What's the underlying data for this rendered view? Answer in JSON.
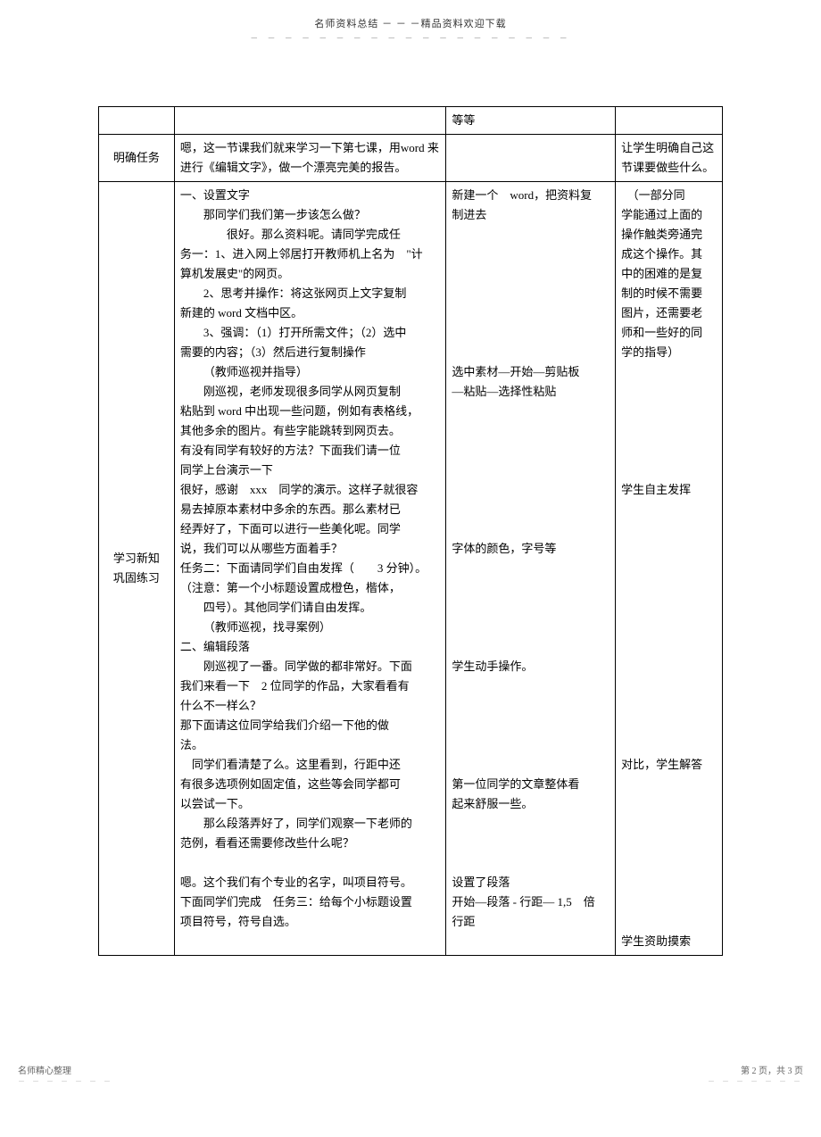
{
  "header": {
    "title": "名师资料总结 － － －精品资料欢迎下载",
    "dots": "－ － － － － － － － － － － － － － － － － － －"
  },
  "table": {
    "row1": {
      "c1": "",
      "c2": "",
      "c3": "等等",
      "c4": ""
    },
    "row2": {
      "c1": "明确任务",
      "c2": "嗯，这一节课我们就来学习一下第七课，用word 来进行《编辑文字》，做一个漂亮完美的报告。",
      "c3": "",
      "c4": "让学生明确自己这节课要做些什么。"
    },
    "row3": {
      "c1": "学习新知\n巩固练习",
      "c2_lines": [
        {
          "cls": "para",
          "t": "一、设置文字"
        },
        {
          "cls": "indent",
          "t": "那同学们我们第一步该怎么做？"
        },
        {
          "cls": "indent2",
          "t": "很好。那么资料呢。请同学完成任"
        },
        {
          "cls": "para",
          "t": "务一：1、进入网上邻居打开教师机上名为　\"计"
        },
        {
          "cls": "para",
          "t": "算机发展史\"的网页。"
        },
        {
          "cls": "indent",
          "t": "2、思考并操作：将这张网页上文字复制"
        },
        {
          "cls": "para",
          "t": "新建的 word 文档中区。"
        },
        {
          "cls": "indent",
          "t": "3、强调：（1）打开所需文件；（2）选中"
        },
        {
          "cls": "para",
          "t": "需要的内容；（3）然后进行复制操作"
        },
        {
          "cls": "indent",
          "t": "（教师巡视并指导）"
        },
        {
          "cls": "indent",
          "t": "刚巡视，老师发现很多同学从网页复制"
        },
        {
          "cls": "para",
          "t": "粘贴到 word 中出现一些问题，例如有表格线，"
        },
        {
          "cls": "para",
          "t": "其他多余的图片。有些字能跳转到网页去。"
        },
        {
          "cls": "para",
          "t": "有没有同学有较好的方法？下面我们请一位"
        },
        {
          "cls": "para",
          "t": "同学上台演示一下"
        },
        {
          "cls": "para",
          "t": "很好，感谢　xxx　同学的演示。这样子就很容"
        },
        {
          "cls": "para",
          "t": "易去掉原本素材中多余的东西。那么素材已"
        },
        {
          "cls": "para",
          "t": "经弄好了，下面可以进行一些美化呢。同学"
        },
        {
          "cls": "para",
          "t": "说，我们可以从哪些方面着手？"
        },
        {
          "cls": "para",
          "t": "任务二：下面请同学们自由发挥（　　3 分钟）。"
        },
        {
          "cls": "para",
          "t": "（注意：第一个小标题设置成橙色，楷体，"
        },
        {
          "cls": "indent",
          "t": "四号）。其他同学们请自由发挥。"
        },
        {
          "cls": "indent",
          "t": "（教师巡视，找寻案例）"
        },
        {
          "cls": "para",
          "t": "二、编辑段落"
        },
        {
          "cls": "indent",
          "t": "刚巡视了一番。同学做的都非常好。下面"
        },
        {
          "cls": "para",
          "t": "我们来看一下　2 位同学的作品，大家看看有"
        },
        {
          "cls": "para",
          "t": "什么不一样么？"
        },
        {
          "cls": "para",
          "t": "那下面请这位同学给我们介绍一下他的做"
        },
        {
          "cls": "para",
          "t": "法。"
        },
        {
          "cls": "para",
          "t": "　同学们看清楚了么。这里看到，行距中还"
        },
        {
          "cls": "para",
          "t": "有很多选项例如固定值，这些等会同学都可"
        },
        {
          "cls": "para",
          "t": "以尝试一下。"
        },
        {
          "cls": "indent",
          "t": "那么段落弄好了，同学们观察一下老师的"
        },
        {
          "cls": "para",
          "t": "范例，看看还需要修改些什么呢？"
        },
        {
          "cls": "spacer",
          "t": ""
        },
        {
          "cls": "para",
          "t": "嗯。这个我们有个专业的名字，叫项目符号。"
        },
        {
          "cls": "para",
          "t": "下面同学们完成　任务三：给每个小标题设置"
        },
        {
          "cls": "para",
          "t": "项目符号，符号自选。"
        }
      ],
      "c3_lines": [
        {
          "cls": "para",
          "t": "新建一个　word，把资料复"
        },
        {
          "cls": "para",
          "t": "制进去"
        },
        {
          "cls": "spacer",
          "t": ""
        },
        {
          "cls": "spacer",
          "t": ""
        },
        {
          "cls": "spacer",
          "t": ""
        },
        {
          "cls": "spacer",
          "t": ""
        },
        {
          "cls": "spacer",
          "t": ""
        },
        {
          "cls": "spacer",
          "t": ""
        },
        {
          "cls": "spacer",
          "t": ""
        },
        {
          "cls": "para",
          "t": "选中素材—开始—剪贴板"
        },
        {
          "cls": "para",
          "t": "—粘贴—选择性粘贴"
        },
        {
          "cls": "spacer",
          "t": ""
        },
        {
          "cls": "spacer",
          "t": ""
        },
        {
          "cls": "spacer",
          "t": ""
        },
        {
          "cls": "spacer",
          "t": ""
        },
        {
          "cls": "spacer",
          "t": ""
        },
        {
          "cls": "spacer",
          "t": ""
        },
        {
          "cls": "spacer",
          "t": ""
        },
        {
          "cls": "para",
          "t": "字体的颜色，字号等"
        },
        {
          "cls": "spacer",
          "t": ""
        },
        {
          "cls": "spacer",
          "t": ""
        },
        {
          "cls": "spacer",
          "t": ""
        },
        {
          "cls": "spacer",
          "t": ""
        },
        {
          "cls": "spacer",
          "t": ""
        },
        {
          "cls": "para",
          "t": "学生动手操作。"
        },
        {
          "cls": "spacer",
          "t": ""
        },
        {
          "cls": "spacer",
          "t": ""
        },
        {
          "cls": "spacer",
          "t": ""
        },
        {
          "cls": "spacer",
          "t": ""
        },
        {
          "cls": "spacer",
          "t": ""
        },
        {
          "cls": "para",
          "t": "第一位同学的文章整体看"
        },
        {
          "cls": "para",
          "t": "起来舒服一些。"
        },
        {
          "cls": "spacer",
          "t": ""
        },
        {
          "cls": "spacer",
          "t": ""
        },
        {
          "cls": "spacer",
          "t": ""
        },
        {
          "cls": "para",
          "t": "设置了段落"
        },
        {
          "cls": "para",
          "t": "开始—段落 - 行距— 1,5　倍"
        },
        {
          "cls": "para",
          "t": "行距"
        }
      ],
      "c4_lines": [
        {
          "cls": "para",
          "t": "　（一部分同"
        },
        {
          "cls": "para",
          "t": "学能通过上面的"
        },
        {
          "cls": "para",
          "t": "操作触类旁通完"
        },
        {
          "cls": "para",
          "t": "成这个操作。其"
        },
        {
          "cls": "para",
          "t": "中的困难的是复"
        },
        {
          "cls": "para",
          "t": "制的时候不需要"
        },
        {
          "cls": "para",
          "t": "图片，还需要老"
        },
        {
          "cls": "para",
          "t": "师和一些好的同"
        },
        {
          "cls": "para",
          "t": "学的指导）"
        },
        {
          "cls": "spacer",
          "t": ""
        },
        {
          "cls": "spacer",
          "t": ""
        },
        {
          "cls": "spacer",
          "t": ""
        },
        {
          "cls": "spacer",
          "t": ""
        },
        {
          "cls": "spacer",
          "t": ""
        },
        {
          "cls": "spacer",
          "t": ""
        },
        {
          "cls": "para",
          "t": "学生自主发挥"
        },
        {
          "cls": "spacer",
          "t": ""
        },
        {
          "cls": "spacer",
          "t": ""
        },
        {
          "cls": "spacer",
          "t": ""
        },
        {
          "cls": "spacer",
          "t": ""
        },
        {
          "cls": "spacer",
          "t": ""
        },
        {
          "cls": "spacer",
          "t": ""
        },
        {
          "cls": "spacer",
          "t": ""
        },
        {
          "cls": "spacer",
          "t": ""
        },
        {
          "cls": "spacer",
          "t": ""
        },
        {
          "cls": "spacer",
          "t": ""
        },
        {
          "cls": "spacer",
          "t": ""
        },
        {
          "cls": "spacer",
          "t": ""
        },
        {
          "cls": "spacer",
          "t": ""
        },
        {
          "cls": "para",
          "t": "对比，学生解答"
        },
        {
          "cls": "spacer",
          "t": ""
        },
        {
          "cls": "spacer",
          "t": ""
        },
        {
          "cls": "spacer",
          "t": ""
        },
        {
          "cls": "spacer",
          "t": ""
        },
        {
          "cls": "spacer",
          "t": ""
        },
        {
          "cls": "spacer",
          "t": ""
        },
        {
          "cls": "spacer",
          "t": ""
        },
        {
          "cls": "spacer",
          "t": ""
        },
        {
          "cls": "para",
          "t": "学生资助摸索"
        }
      ]
    }
  },
  "footer": {
    "left": "名师精心整理",
    "right": "第 2 页，共 3 页",
    "dots": "－ － － － － － －"
  }
}
